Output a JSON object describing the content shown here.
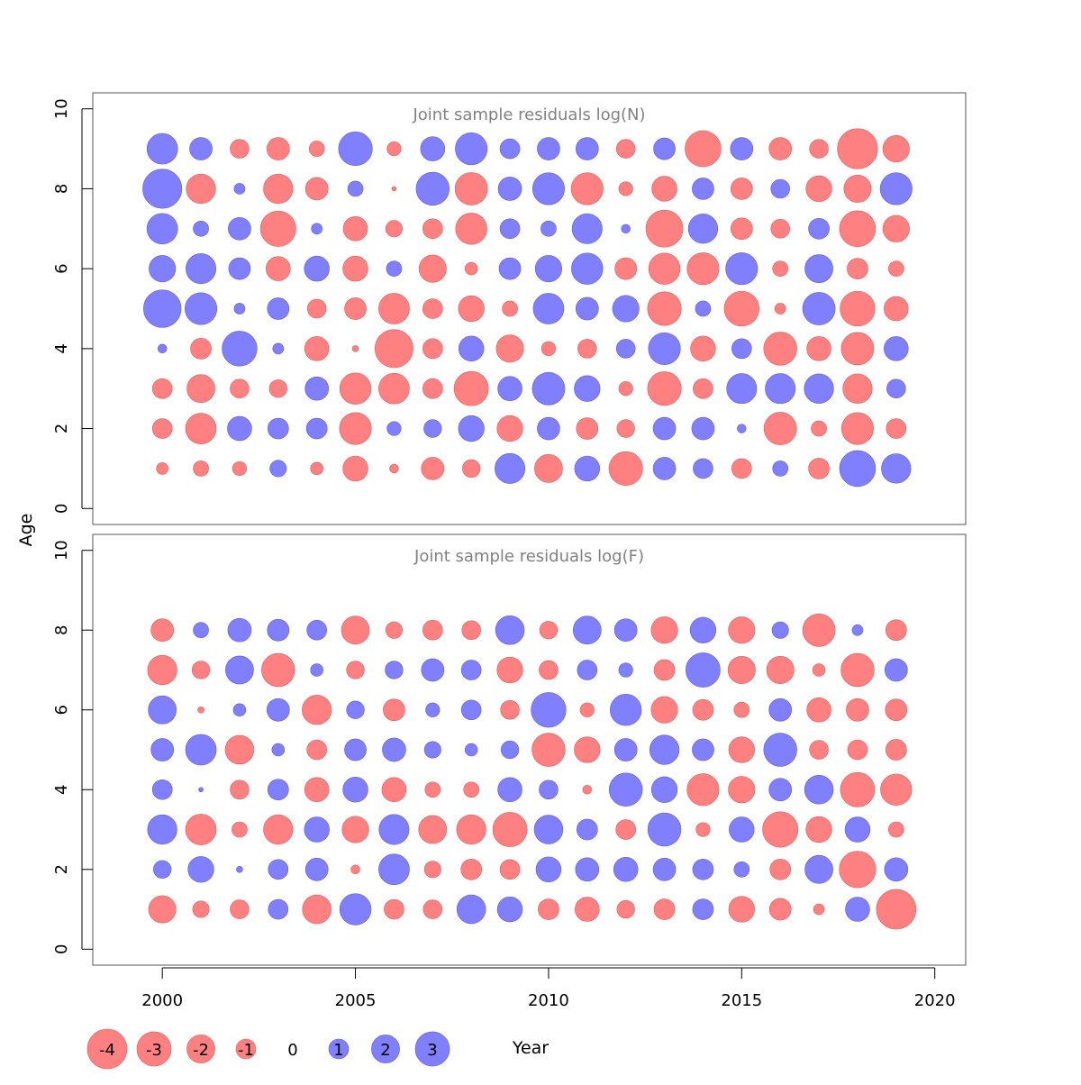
{
  "chart_data": {
    "type": "scatter",
    "subtype": "bubble",
    "xlabel": "Year",
    "ylabel": "Age",
    "x_ticks": [
      "2000",
      "2005",
      "2010",
      "2015",
      "2020"
    ],
    "y_ticks": [
      "0",
      "2",
      "4",
      "6",
      "8",
      "10"
    ],
    "xlim": [
      1998.2,
      2020.8
    ],
    "ylim": [
      -0.4,
      10.4
    ],
    "colors": {
      "negative": "#ff8080",
      "positive": "#8080ff",
      "frame": "#555555",
      "title": "#808080"
    },
    "legend": {
      "position": "bottom-left",
      "entries": [
        {
          "label": "-4",
          "value": -4
        },
        {
          "label": "-3",
          "value": -3
        },
        {
          "label": "-2",
          "value": -2
        },
        {
          "label": "-1",
          "value": -1
        },
        {
          "label": "0",
          "value": 0
        },
        {
          "label": "1",
          "value": 1
        },
        {
          "label": "2",
          "value": 2
        },
        {
          "label": "3",
          "value": 3
        }
      ]
    },
    "panels": [
      {
        "title": "Joint sample residuals log(N)",
        "years": [
          2000,
          2001,
          2002,
          2003,
          2004,
          2005,
          2006,
          2007,
          2008,
          2009,
          2010,
          2011,
          2012,
          2013,
          2014,
          2015,
          2016,
          2017,
          2018,
          2019
        ],
        "ages": [
          1,
          2,
          3,
          4,
          5,
          6,
          7,
          8,
          9
        ],
        "residuals": [
          [
            -0.35,
            -1.0,
            -1.0,
            0.2,
            3.6,
            1.8,
            2.4,
            3.9,
            2.4
          ],
          [
            -0.6,
            -2.4,
            -2.0,
            -1.1,
            2.6,
            2.3,
            0.6,
            -2.2,
            1.3
          ],
          [
            -0.5,
            1.5,
            -0.9,
            3.1,
            0.3,
            1.2,
            1.3,
            0.3,
            -0.9
          ],
          [
            0.7,
            1.1,
            -0.8,
            0.3,
            1.2,
            -1.5,
            -3.2,
            -2.2,
            -1.3
          ],
          [
            -0.4,
            1.1,
            1.4,
            -1.5,
            -0.9,
            1.6,
            0.3,
            -1.3,
            -0.6
          ],
          [
            -1.6,
            -2.6,
            -2.5,
            -0.1,
            -1.2,
            -1.6,
            -1.5,
            0.6,
            2.9
          ],
          [
            -0.2,
            0.5,
            -2.4,
            -3.7,
            -2.4,
            0.6,
            -0.7,
            -0.05,
            -0.5
          ],
          [
            -1.3,
            0.8,
            -1.0,
            -1.0,
            -1.0,
            -1.9,
            -1.0,
            2.8,
            1.5
          ],
          [
            -0.8,
            1.7,
            -3.0,
            1.6,
            -1.7,
            -0.4,
            -2.5,
            -2.7,
            2.6
          ],
          [
            2.3,
            -1.7,
            1.5,
            -1.9,
            -0.6,
            1.2,
            1.0,
            1.4,
            1.0
          ],
          [
            -2.0,
            1.3,
            2.7,
            -0.5,
            2.4,
            1.8,
            0.6,
            2.6,
            1.3
          ],
          [
            1.6,
            -1.2,
            1.7,
            -0.9,
            1.3,
            2.5,
            2.3,
            -2.6,
            1.3
          ],
          [
            -2.9,
            -0.8,
            -0.5,
            0.9,
            1.8,
            -1.2,
            0.2,
            -0.5,
            -0.9
          ],
          [
            1.3,
            1.3,
            -2.9,
            2.6,
            -2.9,
            -2.5,
            -3.5,
            -1.6,
            1.2
          ],
          [
            1.0,
            1.3,
            -1.0,
            -1.6,
            0.6,
            -2.6,
            2.2,
            1.2,
            -3.3
          ],
          [
            -1.0,
            0.2,
            2.3,
            1.0,
            -3.1,
            2.6,
            -1.2,
            -1.2,
            1.3
          ],
          [
            0.6,
            -2.7,
            2.3,
            -2.8,
            -0.3,
            -0.6,
            -0.9,
            0.9,
            -1.3
          ],
          [
            -1.1,
            -0.6,
            2.2,
            -1.5,
            2.7,
            2.0,
            1.1,
            -1.7,
            -0.9
          ],
          [
            3.3,
            -2.6,
            -2.2,
            -2.7,
            -3.1,
            -1.1,
            -3.3,
            -1.9,
            -4.1
          ],
          [
            2.2,
            -1.0,
            0.9,
            1.5,
            -1.5,
            -0.6,
            -1.8,
            2.6,
            -1.8
          ]
        ]
      },
      {
        "title": "Joint sample residuals log(F)",
        "years": [
          2000,
          2001,
          2002,
          2003,
          2004,
          2005,
          2006,
          2007,
          2008,
          2009,
          2010,
          2011,
          2012,
          2013,
          2014,
          2015,
          2016,
          2017,
          2018,
          2019
        ],
        "ages": [
          1,
          2,
          3,
          4,
          5,
          6,
          7,
          8
        ],
        "residuals": [
          [
            -1.9,
            0.8,
            2.2,
            1.0,
            1.3,
            2.0,
            -2.2,
            -1.3
          ],
          [
            -0.7,
            1.7,
            -2.4,
            0.05,
            2.4,
            -0.1,
            -0.8,
            0.6
          ],
          [
            -0.9,
            0.1,
            -0.6,
            -0.9,
            -2.1,
            0.4,
            2.0,
            1.4
          ],
          [
            1.0,
            1.0,
            -2.2,
            1.1,
            0.4,
            1.3,
            -2.8,
            1.2
          ],
          [
            -2.1,
            1.3,
            1.6,
            -1.5,
            -1.0,
            -2.2,
            0.4,
            1.0
          ],
          [
            2.5,
            -0.2,
            -1.8,
            1.6,
            1.2,
            0.8,
            -0.8,
            -2.0
          ],
          [
            -1.0,
            2.4,
            2.3,
            -1.5,
            1.4,
            -1.2,
            0.8,
            -0.7
          ],
          [
            -0.9,
            -0.7,
            -2.0,
            -0.6,
            0.7,
            0.5,
            1.3,
            -1.0
          ],
          [
            2.1,
            -1.1,
            -2.2,
            -0.6,
            0.4,
            1.0,
            1.0,
            -0.9
          ],
          [
            1.6,
            -1.0,
            -3.0,
            1.5,
            0.8,
            -0.9,
            -1.7,
            2.1
          ],
          [
            -1.1,
            1.6,
            2.1,
            0.9,
            -2.8,
            3.1,
            -0.9,
            -0.8
          ],
          [
            -1.5,
            1.4,
            1.1,
            -0.2,
            -1.7,
            -0.5,
            1.0,
            2.0
          ],
          [
            -0.8,
            1.5,
            -1.0,
            2.8,
            1.3,
            2.5,
            0.5,
            1.3
          ],
          [
            -1.1,
            1.3,
            2.8,
            1.7,
            2.2,
            -1.8,
            -1.1,
            -1.8
          ],
          [
            1.1,
            1.1,
            -0.5,
            -2.6,
            1.2,
            -1.1,
            3.0,
            1.7
          ],
          [
            -1.7,
            0.6,
            1.6,
            -1.8,
            -1.7,
            -0.6,
            -1.9,
            -1.8
          ],
          [
            -1.2,
            -1.1,
            -3.2,
            1.3,
            2.8,
            1.3,
            -1.9,
            0.7
          ],
          [
            -0.3,
            2.0,
            -1.7,
            2.1,
            -0.9,
            -1.5,
            -0.4,
            -2.7
          ],
          [
            1.5,
            -3.4,
            1.6,
            -3.0,
            -1.0,
            -1.3,
            -2.8,
            0.3
          ],
          [
            -4.0,
            1.4,
            -0.6,
            -2.5,
            -1.1,
            -1.2,
            1.3,
            -1.1
          ]
        ]
      }
    ]
  }
}
